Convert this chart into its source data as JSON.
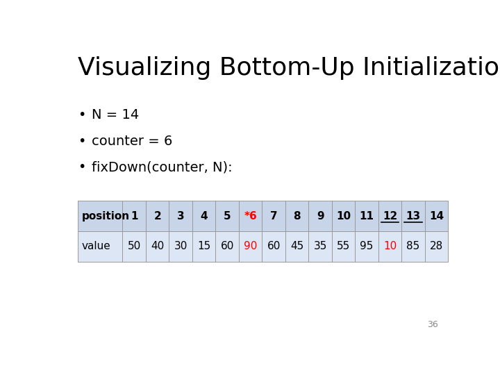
{
  "title": "Visualizing Bottom-Up Initialization",
  "bullets": [
    "N = 14",
    "counter = 6",
    "fixDown(counter, N):"
  ],
  "positions": [
    "position",
    "1",
    "2",
    "3",
    "4",
    "5",
    "*6",
    "7",
    "8",
    "9",
    "10",
    "11",
    "12",
    "13",
    "14"
  ],
  "values": [
    "value",
    "50",
    "40",
    "30",
    "15",
    "60",
    "90",
    "60",
    "45",
    "35",
    "55",
    "95",
    "10",
    "85",
    "28"
  ],
  "red_cells_row0": [
    6
  ],
  "red_cells_row1": [
    6,
    12
  ],
  "underline_cells": [
    12,
    13
  ],
  "header_bg": "#c8d4e8",
  "value_bg": "#dce6f5",
  "table_border_color": "#999999",
  "background_color": "#ffffff",
  "title_color": "#000000",
  "bullet_color": "#000000",
  "red_color": "#ff0000",
  "normal_color": "#000000",
  "slide_number": "36",
  "title_fontsize": 26,
  "bullet_fontsize": 14,
  "table_fontsize": 11
}
